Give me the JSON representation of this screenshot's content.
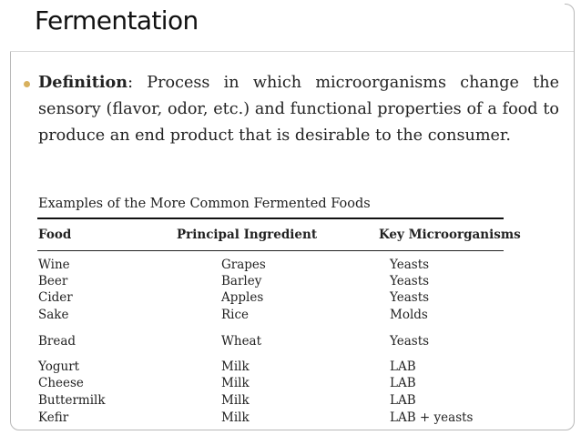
{
  "slide": {
    "title": "Fermentation",
    "definition_label": "Definition",
    "definition_text": ": Process in which microorganisms change the sensory (flavor, odor, etc.) and functional properties of a food to produce an end product that is desirable to the consumer."
  },
  "table": {
    "title": "Examples of the More Common Fermented Foods",
    "headers": [
      "Food",
      "Principal Ingredient",
      "Key Microorganisms"
    ],
    "rows": [
      [
        "Wine",
        "Grapes",
        "Yeasts"
      ],
      [
        "Beer",
        "Barley",
        "Yeasts"
      ],
      [
        "Cider",
        "Apples",
        "Yeasts"
      ],
      [
        "Sake",
        "Rice",
        "Molds"
      ],
      [
        "Bread",
        "Wheat",
        "Yeasts"
      ],
      [
        "Yogurt",
        "Milk",
        "LAB"
      ],
      [
        "Cheese",
        "Milk",
        "LAB"
      ],
      [
        "Buttermilk",
        "Milk",
        "LAB"
      ],
      [
        "Kefir",
        "Milk",
        "LAB + yeasts"
      ]
    ]
  }
}
